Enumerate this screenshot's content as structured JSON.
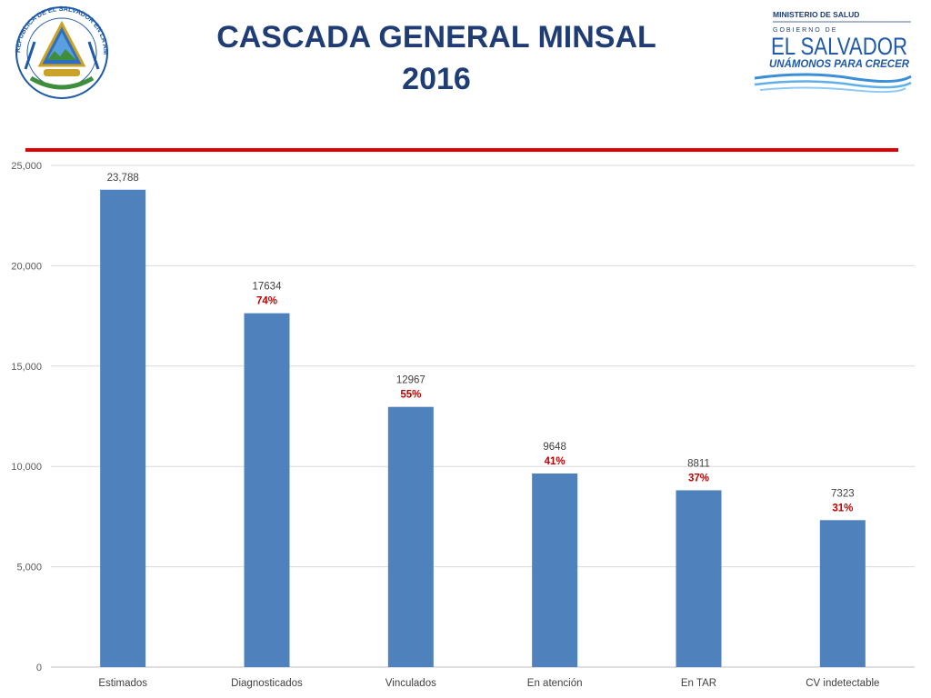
{
  "title": {
    "line1": "CASCADA GENERAL MINSAL",
    "line2": "2016"
  },
  "logo": {
    "org_top": "MINISTERIO DE SALUD",
    "gobierno": "GOBIERNO DE",
    "country": "EL SALVADOR",
    "slogan": "UNÁMONOS PARA CRECER",
    "seal_text": "REPUBLICA DE EL SALVADOR EN LA AMERICA CENTRAL",
    "seal_colors": {
      "blue": "#1e5aa8",
      "gold": "#c9a227",
      "green": "#3e8e3e"
    }
  },
  "colors": {
    "bar": "#4f81bd",
    "accent_line": "#e00000",
    "title": "#1f3c74",
    "pct": "#c00000",
    "grid": "#d9d9d9"
  },
  "chart_data": {
    "type": "bar",
    "categories": [
      "Estimados",
      "Diagnosticados",
      "Vinculados",
      "En atención",
      "En TAR",
      "CV indetectable"
    ],
    "values": [
      23788,
      17634,
      12967,
      9648,
      8811,
      7323
    ],
    "value_labels": [
      "23,788",
      "17634",
      "12967",
      "9648",
      "8811",
      "7323"
    ],
    "percent_labels": [
      "",
      "74%",
      "55%",
      "41%",
      "37%",
      "31%"
    ],
    "y_ticks": [
      0,
      5000,
      10000,
      15000,
      20000,
      25000
    ],
    "y_tick_labels": [
      "0",
      "5,000",
      "10,000",
      "15,000",
      "20,000",
      "25,000"
    ],
    "ylim": [
      0,
      25000
    ],
    "grid": true,
    "legend": "none",
    "title": "",
    "xlabel": "",
    "ylabel": ""
  }
}
